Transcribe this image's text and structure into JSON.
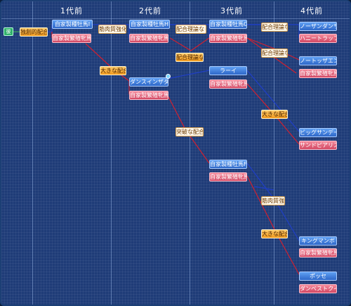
{
  "columns": [
    "1代前",
    "2代前",
    "3代前",
    "4代前"
  ],
  "root_badge": "彼",
  "tri": "▼",
  "colors": {
    "sire": "#2e67c8",
    "dam": "#d24864",
    "match": "#f09a1e",
    "line_sire": "#1f3ec8",
    "line_dam": "#d02030"
  },
  "nodes": {
    "root_match": "独創的配合",
    "g1_sire": "自家製種牡馬I",
    "g1_dam": "自家製繁殖牝馬A",
    "g1_tag": "筋肉質強化",
    "g1_cross": "大きな配合",
    "g2_sire": "自家製種牡馬H",
    "g2_dam": "自家製繁殖牝馬B",
    "g2_tag1": "配合理論なし",
    "g2_tag2": "配合理論なし",
    "g2b_sire": "ダンスインザダーク",
    "g2b_dam": "自家製繁殖牝馬C",
    "g2_cross": "突破な配合",
    "g3_sire": "自家製種牡馬G",
    "g3_dam": "自家製繁殖牝馬D",
    "g3_tag1": "配合理論なし",
    "g3_tag2": "配合理論なし",
    "g3b_sire": "ラーイ",
    "g3b_dam": "自家製繁殖牝馬E",
    "g3_cross": "大きな配合",
    "g3c_sire": "自家製種牡馬F",
    "g3c_dam": "自家製繁殖牝馬F",
    "g3c_tag": "筋肉質強化",
    "g3c_cross": "大きな配合",
    "g4_1": "ノーザンダンサー",
    "g4_2": "ハニートラップ",
    "g4_3": "ノートッザエント",
    "g4_4": "自家製繁殖牝馬G",
    "g4_5": "ビッグサンデー",
    "g4_6": "サンドピアリス",
    "g4_7": "キングマンボ",
    "g4_8": "自家製繁殖牝馬H",
    "g4_9": "ポッセ",
    "g4_10": "ダンベストクイーン"
  }
}
